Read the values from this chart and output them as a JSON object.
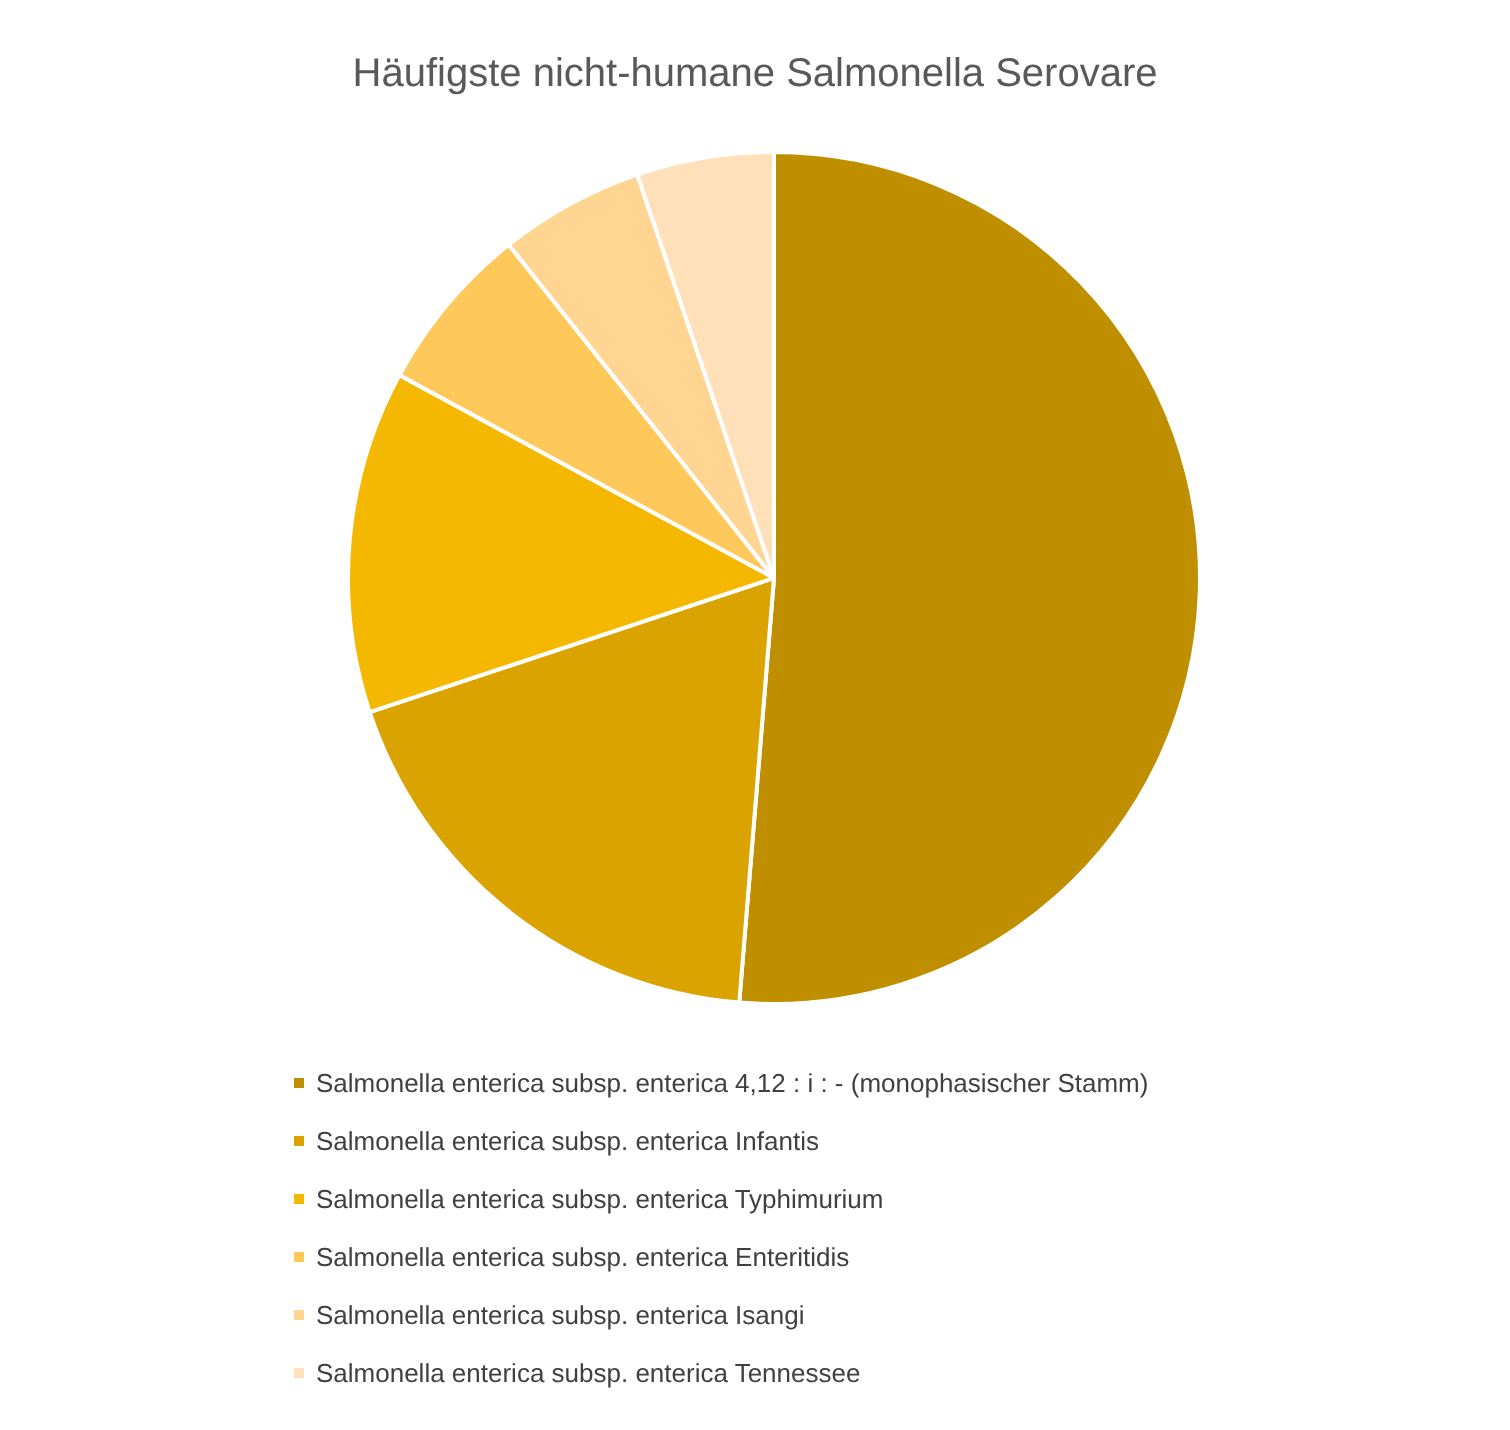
{
  "chart_data": {
    "type": "pie",
    "title": "Häufigste nicht-humane Salmonella Serovare",
    "categories": [
      "Salmonella enterica subsp. enterica 4,12 : i : - (monophasischer Stamm)",
      "Salmonella enterica subsp. enterica Infantis",
      "Salmonella enterica subsp. enterica Typhimurium",
      "Salmonella enterica subsp. enterica Enteritidis",
      "Salmonella enterica subsp. enterica Isangi",
      "Salmonella enterica subsp. enterica Tennessee"
    ],
    "values": [
      51.3,
      18.6,
      13.0,
      6.4,
      5.5,
      5.2
    ],
    "colors": [
      "#bf8f00",
      "#daa300",
      "#f4b800",
      "#ffc85a",
      "#ffd591",
      "#ffe0b8"
    ],
    "legend": "bottom"
  }
}
